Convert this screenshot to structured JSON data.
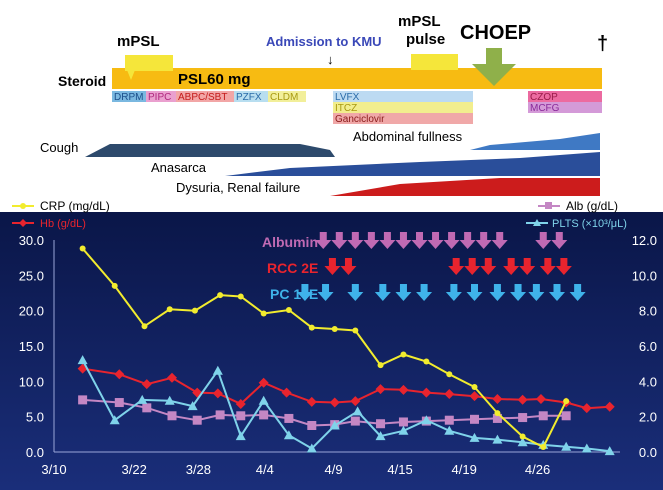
{
  "colors": {
    "steroid": "#f7bb12",
    "pulse_arrow": "#f5e63a",
    "choep_arrow": "#8fb04a",
    "plot_bg": "#0b1c58",
    "crp": "#f2ec2e",
    "hb": "#e8242e",
    "alb": "#c487c4",
    "plts": "#7fd3ea",
    "albumin_arrow": "#c06ab3",
    "rcc_arrow": "#e8242e",
    "pc_arrow": "#3fb3ea",
    "cough": "#2d4a6c",
    "abdominal": "#3f79c4",
    "anasarca": "#2a4e9a",
    "dysuria": "#cc1c1c"
  },
  "timeline": {
    "mpsl_label": "mPSL",
    "mpsl_pulse_label_1": "mPSL",
    "mpsl_pulse_label_2": "pulse",
    "choep_label": "CHOEP",
    "admission_label": "Admission to KMU",
    "admission_arrow": "↓",
    "dagger": "†",
    "steroid_label": "Steroid",
    "psl_label": "PSL60 mg",
    "drugs": [
      {
        "label": "DRPM",
        "color": "#7ab8e0",
        "text": "#1c4f8a"
      },
      {
        "label": "PIPC",
        "color": "#eaa0cf",
        "text": "#b0287e"
      },
      {
        "label": "ABPC/SBT",
        "color": "#f2a6a6",
        "text": "#c41c1c"
      },
      {
        "label": "PZFX",
        "color": "#b8def0",
        "text": "#2a6ba8"
      },
      {
        "label": "CLDM",
        "color": "#f2ef9a",
        "text": "#a89a12"
      },
      {
        "label": "LVFX",
        "color": "#bcdaf2",
        "text": "#2a6ba8"
      },
      {
        "label": "ITCZ",
        "color": "#f2ee8e",
        "text": "#a89a12"
      },
      {
        "label": "Ganciclovir",
        "color": "#f0a8a8",
        "text": "#8a1c1c"
      },
      {
        "label": "CZOP",
        "color": "#ec6aa0",
        "text": "#9a1c4a"
      },
      {
        "label": "MCFG",
        "color": "#d49ad8",
        "text": "#8a2a9a"
      }
    ],
    "symptoms": {
      "cough": "Cough",
      "abdominal": "Abdominal fullness",
      "anasarca": "Anasarca",
      "dysuria": "Dysuria, Renal failure"
    }
  },
  "chart_data": {
    "type": "line",
    "x_categories": [
      "3/10",
      "3/22",
      "3/28",
      "4/4",
      "4/9",
      "4/15",
      "4/19",
      "4/26"
    ],
    "y_left": {
      "label": "Hb (g/dL)",
      "ticks": [
        "0.0",
        "5.0",
        "10.0",
        "15.0",
        "20.0",
        "25.0",
        "30.0"
      ],
      "range": [
        0,
        30
      ]
    },
    "y_right": {
      "label": "PLTS (×10³/μL)",
      "ticks": [
        "0.0",
        "2.0",
        "4.0",
        "6.0",
        "8.0",
        "10.0",
        "12.0"
      ],
      "range": [
        0,
        12
      ]
    },
    "axis_unit_labels": {
      "crp": "CRP (mg/dL)",
      "hb": "Hb (g/dL)",
      "alb": "Alb (g/dL)",
      "plts": "PLTS (×10³/μL)"
    },
    "series": [
      {
        "name": "CRP",
        "axis": "left",
        "color": "#f2ec2e",
        "marker": "circle",
        "points": [
          [
            0.45,
            28.8
          ],
          [
            1.15,
            23.5
          ],
          [
            1.8,
            17.8
          ],
          [
            2.35,
            20.2
          ],
          [
            2.9,
            20
          ],
          [
            3.45,
            22.2
          ],
          [
            3.9,
            22
          ],
          [
            4.4,
            19.6
          ],
          [
            4.95,
            20.1
          ],
          [
            5.45,
            17.6
          ],
          [
            5.95,
            17.4
          ],
          [
            6.4,
            17.2
          ],
          [
            6.95,
            12.3
          ],
          [
            7.45,
            13.8
          ],
          [
            7.95,
            12.8
          ],
          [
            8.45,
            11
          ],
          [
            9.0,
            9.2
          ],
          [
            9.5,
            5.5
          ],
          [
            10.05,
            2.2
          ],
          [
            10.5,
            0.7
          ],
          [
            11.0,
            7.2
          ]
        ]
      },
      {
        "name": "Hb",
        "axis": "left",
        "color": "#e8242e",
        "marker": "diamond",
        "points": [
          [
            0.45,
            11.8
          ],
          [
            1.25,
            11
          ],
          [
            1.85,
            9.6
          ],
          [
            2.4,
            10.5
          ],
          [
            2.95,
            8.4
          ],
          [
            3.4,
            8.3
          ],
          [
            3.9,
            6.8
          ],
          [
            4.4,
            9.8
          ],
          [
            4.9,
            8.4
          ],
          [
            5.45,
            7.1
          ],
          [
            5.95,
            7
          ],
          [
            6.4,
            7.2
          ],
          [
            6.95,
            8.9
          ],
          [
            7.45,
            8.8
          ],
          [
            7.95,
            8.4
          ],
          [
            8.45,
            8.2
          ],
          [
            9.0,
            7.9
          ],
          [
            9.5,
            7.5
          ],
          [
            10.05,
            7.4
          ],
          [
            10.45,
            7.5
          ],
          [
            11.0,
            7
          ],
          [
            11.45,
            6.2
          ],
          [
            11.95,
            6.4
          ]
        ]
      },
      {
        "name": "Alb",
        "axis": "right",
        "color": "#c487c4",
        "marker": "square",
        "points": [
          [
            0.45,
            2.95
          ],
          [
            1.25,
            2.8
          ],
          [
            1.85,
            2.5
          ],
          [
            2.4,
            2.05
          ],
          [
            2.95,
            1.8
          ],
          [
            3.45,
            2.1
          ],
          [
            3.9,
            2.05
          ],
          [
            4.4,
            2.1
          ],
          [
            4.95,
            1.9
          ],
          [
            5.45,
            1.5
          ],
          [
            5.95,
            1.55
          ],
          [
            6.4,
            1.75
          ],
          [
            6.95,
            1.6
          ],
          [
            7.45,
            1.7
          ],
          [
            7.95,
            1.75
          ],
          [
            8.45,
            1.8
          ],
          [
            9.0,
            1.85
          ],
          [
            9.5,
            1.9
          ],
          [
            10.05,
            1.95
          ],
          [
            10.5,
            2.05
          ],
          [
            11.0,
            2.05
          ]
        ]
      },
      {
        "name": "PLTS",
        "axis": "right",
        "color": "#7fd3ea",
        "marker": "triangle",
        "points": [
          [
            0.45,
            5.2
          ],
          [
            1.15,
            1.8
          ],
          [
            1.75,
            2.95
          ],
          [
            2.35,
            2.9
          ],
          [
            2.85,
            2.6
          ],
          [
            3.4,
            4.6
          ],
          [
            3.9,
            0.9
          ],
          [
            4.4,
            2.9
          ],
          [
            4.95,
            0.95
          ],
          [
            5.45,
            0.2
          ],
          [
            5.95,
            1.5
          ],
          [
            6.45,
            2.3
          ],
          [
            6.95,
            0.9
          ],
          [
            7.45,
            1.2
          ],
          [
            7.95,
            1.8
          ],
          [
            8.45,
            1.2
          ],
          [
            9.0,
            0.8
          ],
          [
            9.5,
            0.7
          ],
          [
            10.05,
            0.55
          ],
          [
            10.5,
            0.4
          ],
          [
            11.0,
            0.3
          ],
          [
            11.45,
            0.2
          ],
          [
            11.95,
            0.05
          ]
        ]
      }
    ],
    "x_range": [
      0,
      12
    ],
    "legend_placement": "top",
    "grid": false
  },
  "transfusions": {
    "albumin_label": "Albumin",
    "rcc_label": "RCC 2E",
    "pc_label": "PC 10E",
    "albumin_x": [
      5.7,
      6.05,
      6.4,
      6.75,
      7.1,
      7.45,
      7.8,
      8.15,
      8.5,
      8.85,
      9.2,
      9.55,
      10.5,
      10.85
    ],
    "rcc_x": [
      5.9,
      6.25,
      8.6,
      8.95,
      9.3,
      9.8,
      10.15,
      10.6,
      10.95
    ],
    "pc_x": [
      5.3,
      5.75,
      6.4,
      7.0,
      7.45,
      7.9,
      8.55,
      9.0,
      9.5,
      9.95,
      10.35,
      10.8,
      11.25
    ]
  }
}
